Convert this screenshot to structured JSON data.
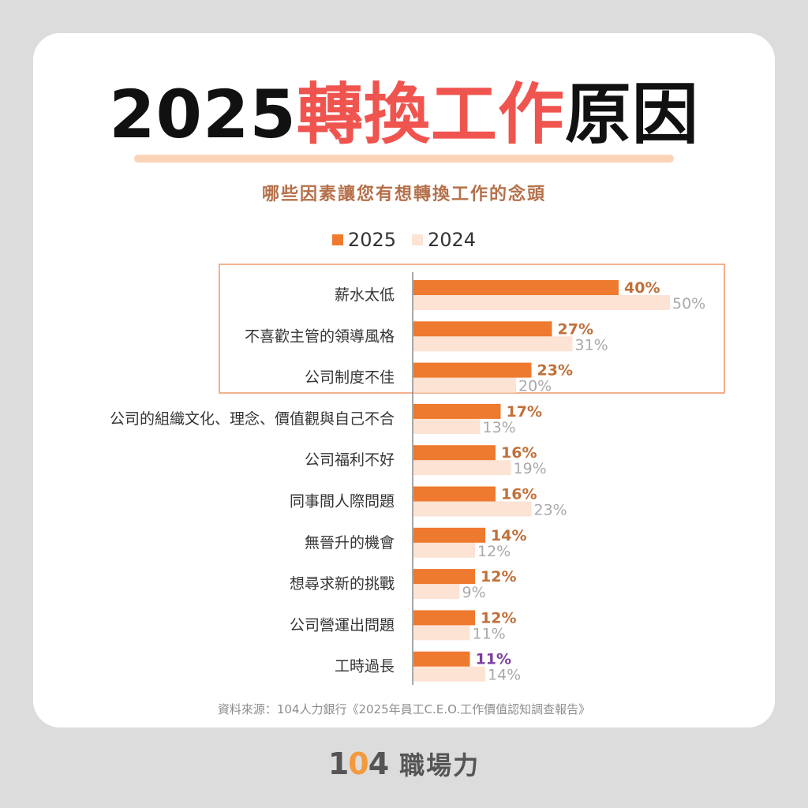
{
  "header": {
    "title_year": "2025",
    "title_highlight": "轉換工作",
    "title_rest": "原因",
    "subtitle": "哪些因素讓您有想轉換工作的念頭"
  },
  "legend": [
    {
      "name": "2025",
      "color": "#ee7a2f"
    },
    {
      "name": "2024",
      "color": "#fde3d4"
    }
  ],
  "chart_data": {
    "type": "bar",
    "orientation": "horizontal",
    "title": "哪些因素讓您有想轉換工作的念頭",
    "categories": [
      "薪水太低",
      "不喜歡主管的領導風格",
      "公司制度不佳",
      "公司的組織文化、理念、價值觀與自己不合",
      "公司福利不好",
      "同事間人際問題",
      "無晉升的機會",
      "想尋求新的挑戰",
      "公司營運出問題",
      "工時過長"
    ],
    "series": [
      {
        "name": "2025",
        "values": [
          40,
          27,
          23,
          17,
          16,
          16,
          14,
          12,
          12,
          11
        ],
        "labels": [
          "40%",
          "27%",
          "23%",
          "17%",
          "16%",
          "16%",
          "14%",
          "12%",
          "12%",
          "11%"
        ]
      },
      {
        "name": "2024",
        "values": [
          50,
          31,
          20,
          13,
          19,
          23,
          12,
          9,
          11,
          14
        ],
        "labels": [
          "50%",
          "31%",
          "20%",
          "13%",
          "19%",
          "23%",
          "12%",
          "9%",
          "11%",
          "14%"
        ]
      }
    ],
    "unit": "%",
    "legend_position": "top-center",
    "highlighted_categories": 3
  },
  "colors": {
    "bar_2025": "#ee7a2f",
    "bar_2024": "#fde3d4",
    "label_2025": "#c0703a",
    "label_2025_accent": "#7b3fa0",
    "label_2024": "#a9a9a9"
  },
  "footer": {
    "source": "資料來源：104人力銀行《2025年員工C.E.O.工作價值認知調查報告》",
    "brand_num_a": "1",
    "brand_num_b": "0",
    "brand_num_c": "4",
    "brand_text": "職場力"
  }
}
